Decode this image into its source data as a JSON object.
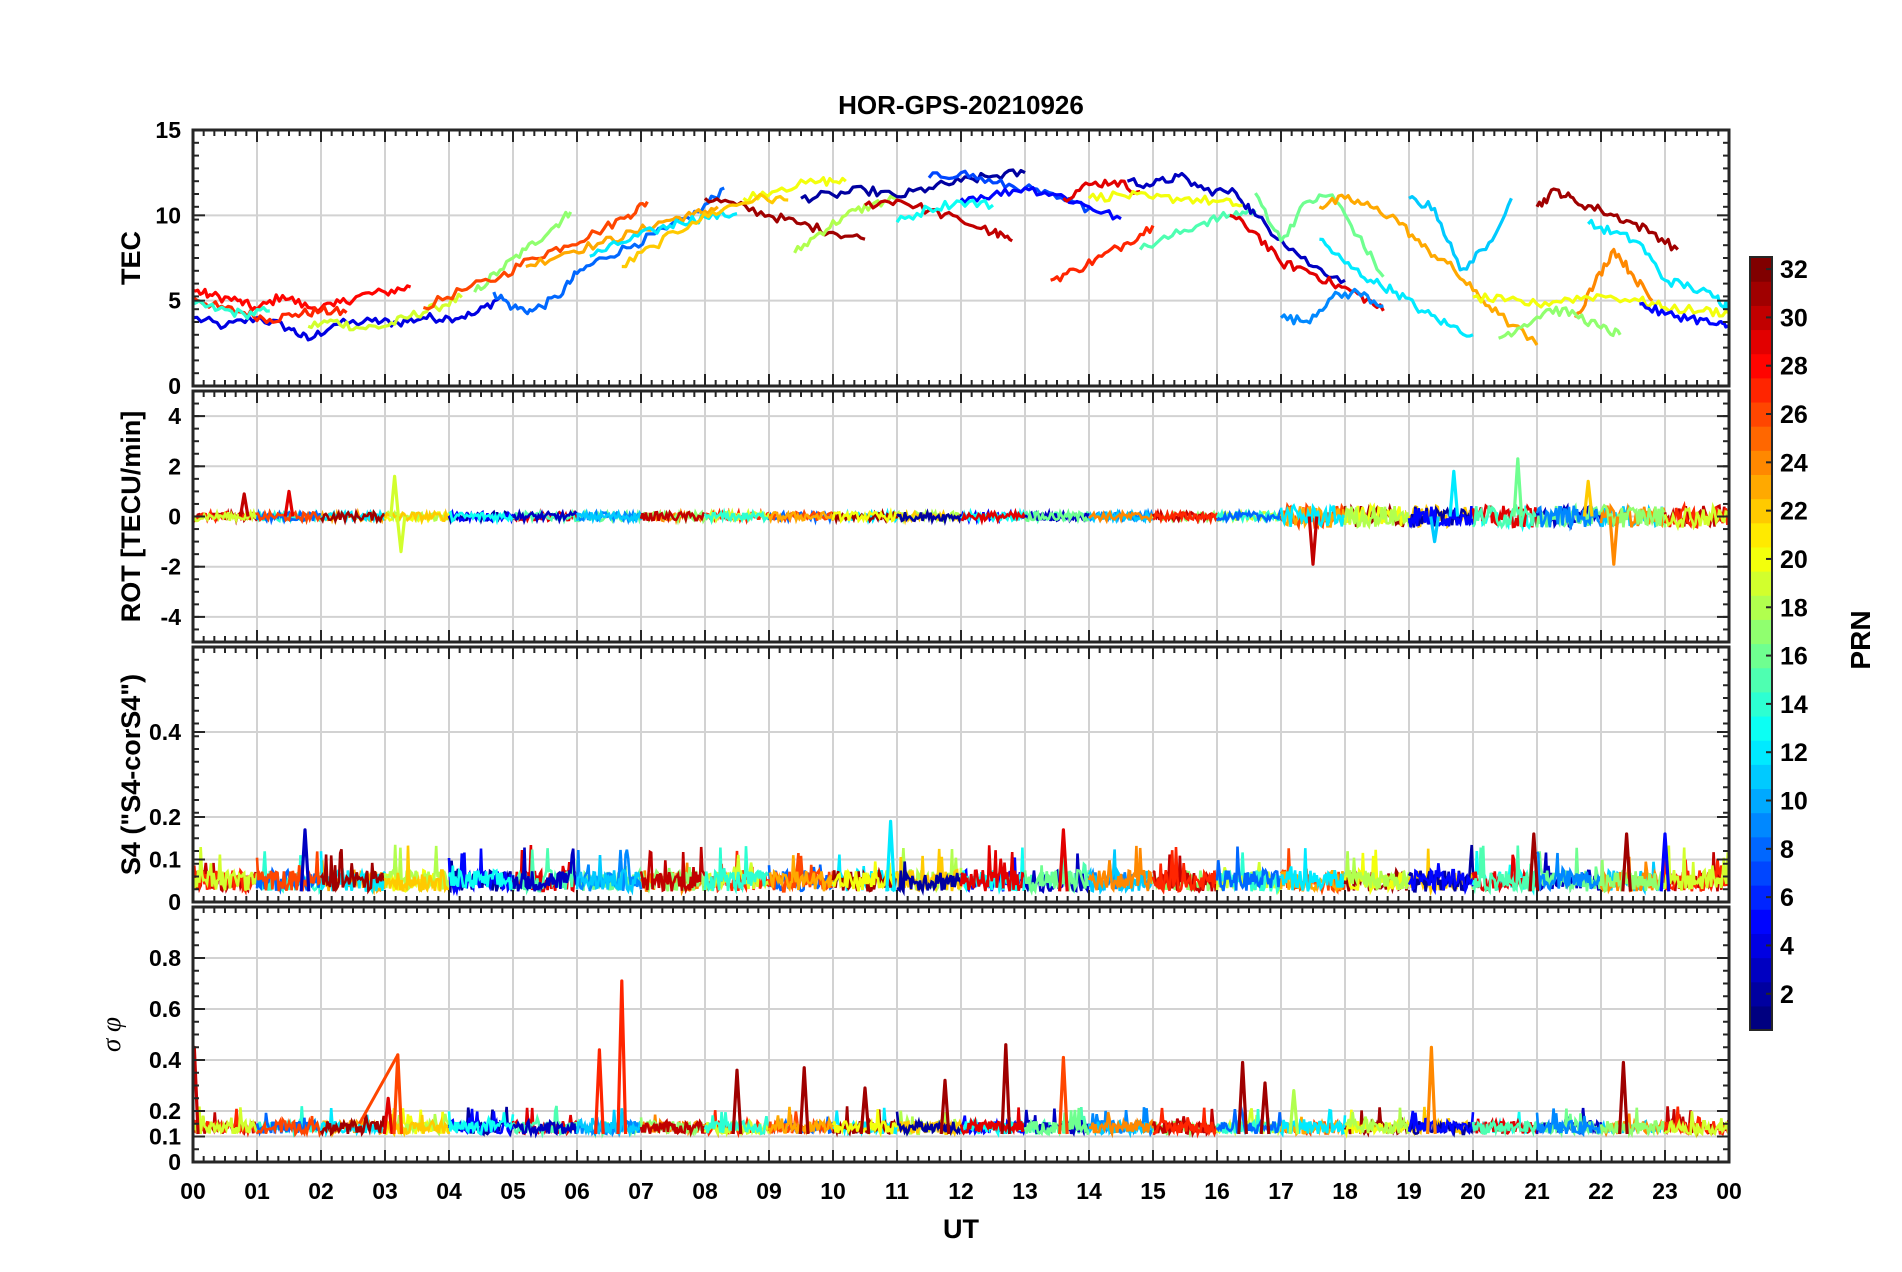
{
  "figure": {
    "title": "HOR-GPS-20210926",
    "xlabel": "UT",
    "x_tick_labels": [
      "00",
      "01",
      "02",
      "03",
      "04",
      "05",
      "06",
      "07",
      "08",
      "09",
      "10",
      "11",
      "12",
      "13",
      "14",
      "15",
      "16",
      "17",
      "18",
      "19",
      "20",
      "21",
      "22",
      "23",
      "00"
    ]
  },
  "colorbar": {
    "label": "PRN",
    "colormap": "jet",
    "range": [
      1,
      32
    ],
    "tick_labels": [
      "2",
      "4",
      "6",
      "8",
      "10",
      "12",
      "14",
      "16",
      "18",
      "20",
      "22",
      "24",
      "26",
      "28",
      "30",
      "32"
    ],
    "tick_values": [
      2,
      4,
      6,
      8,
      10,
      12,
      14,
      16,
      18,
      20,
      22,
      24,
      26,
      28,
      30,
      32
    ]
  },
  "chart_data": [
    {
      "type": "line",
      "panel": "TEC",
      "title": "HOR-GPS-20210926",
      "ylabel": "TEC",
      "xlabel": "",
      "xlim": [
        0,
        24
      ],
      "ylim": [
        0,
        15
      ],
      "yticks": [
        0,
        5,
        10,
        15
      ],
      "ytick_labels": [
        "0",
        "5",
        "10",
        "15"
      ],
      "grid": true,
      "color_by": "PRN",
      "series": [
        {
          "prn": 4,
          "x": [
            0,
            0.5,
            1,
            1.5,
            1.8,
            2.2,
            2.8,
            3.2,
            3.6,
            4,
            4.4,
            4.8
          ],
          "values": [
            4,
            3.5,
            4,
            3.4,
            2.7,
            3.6,
            3.8,
            3.7,
            4,
            4,
            4.2,
            5.2
          ]
        },
        {
          "prn": 28,
          "x": [
            0,
            0.3,
            0.7,
            1,
            1.4,
            1.8,
            2.2,
            2.6,
            3,
            3.4
          ],
          "values": [
            5.6,
            5.3,
            5,
            4.5,
            5.3,
            4.6,
            4.7,
            5.3,
            5.5,
            5.8
          ]
        },
        {
          "prn": 27,
          "x": [
            0,
            0.4,
            0.8,
            1.2,
            1.6,
            2,
            2.4
          ],
          "values": [
            5.2,
            4.6,
            4.3,
            3.9,
            4.2,
            4.4,
            4.3
          ]
        },
        {
          "prn": 19,
          "x": [
            1.8,
            2.2,
            2.6,
            3,
            3.4,
            3.8,
            4.2
          ],
          "values": [
            3.5,
            3.8,
            3.4,
            3.5,
            4.1,
            4.6,
            5.2
          ]
        },
        {
          "prn": 14,
          "x": [
            0,
            0.4,
            0.8,
            1.2
          ],
          "values": [
            4.8,
            4.5,
            4.2,
            4.4
          ]
        },
        {
          "prn": 17,
          "x": [
            4.4,
            4.8,
            5.2,
            5.6,
            5.9
          ],
          "values": [
            5.5,
            6.8,
            8,
            9.2,
            10.2
          ]
        },
        {
          "prn": 8,
          "x": [
            4.7,
            5,
            5.3,
            5.7,
            6,
            6.4,
            6.9,
            7.4,
            7.9,
            8.3
          ],
          "values": [
            5.5,
            4.6,
            4.4,
            5.2,
            6.6,
            7.5,
            8.3,
            9.2,
            10.2,
            11.6
          ]
        },
        {
          "prn": 26,
          "x": [
            3.6,
            4.2,
            4.8,
            5.3,
            5.8,
            6.3,
            6.8,
            7.1
          ],
          "values": [
            4.6,
            5.6,
            6.4,
            7.5,
            8.2,
            9,
            10,
            10.8
          ]
        },
        {
          "prn": 23,
          "x": [
            5.2,
            5.8,
            6.4,
            6.9,
            7.4,
            7.8,
            8.2
          ],
          "values": [
            7,
            7.8,
            8.4,
            9,
            9.7,
            10,
            10.5
          ]
        },
        {
          "prn": 12,
          "x": [
            6.2,
            6.7,
            7.2,
            7.6,
            8,
            8.5
          ],
          "values": [
            7.6,
            8.4,
            9.1,
            9.6,
            9.9,
            10.1
          ]
        },
        {
          "prn": 31,
          "x": [
            8,
            8.5,
            9,
            9.5,
            10,
            10.5
          ],
          "values": [
            11,
            10.6,
            10,
            9.5,
            9,
            8.6
          ]
        },
        {
          "prn": 20,
          "x": [
            8.6,
            9.2,
            9.8,
            10.2
          ],
          "values": [
            11,
            11.6,
            12,
            12
          ]
        },
        {
          "prn": 18,
          "x": [
            9.4,
            9.8,
            10.2,
            10.6,
            11
          ],
          "values": [
            7.8,
            9,
            10,
            10.6,
            11
          ]
        },
        {
          "prn": 22,
          "x": [
            6.7,
            7.2,
            7.8,
            8.3,
            8.8,
            9.3
          ],
          "values": [
            7,
            8.2,
            9.6,
            10.4,
            11,
            10.9
          ]
        },
        {
          "prn": 2,
          "x": [
            9.5,
            10,
            10.5,
            11,
            11.5,
            12,
            12.5,
            13
          ],
          "values": [
            11,
            11.2,
            11.5,
            11.1,
            11.6,
            12,
            12.3,
            12.5
          ]
        },
        {
          "prn": 30,
          "x": [
            10.5,
            11,
            11.5,
            12,
            12.5,
            12.8
          ],
          "values": [
            10.6,
            10.9,
            10.3,
            9.7,
            9,
            8.5
          ]
        },
        {
          "prn": 7,
          "x": [
            11.5,
            12,
            12.5,
            13,
            13.5,
            14
          ],
          "values": [
            12.2,
            12.5,
            11.9,
            11.6,
            11,
            10.4
          ]
        },
        {
          "prn": 5,
          "x": [
            12,
            12.5,
            13,
            13.5,
            14,
            14.5
          ],
          "values": [
            11,
            11.2,
            11.6,
            11.2,
            10.5,
            9.8
          ]
        },
        {
          "prn": 13,
          "x": [
            11,
            11.5,
            12,
            12.5
          ],
          "values": [
            9.6,
            10.4,
            10.8,
            10.6
          ]
        },
        {
          "prn": 27,
          "x": [
            13.4,
            13.8,
            14.2,
            14.6,
            15
          ],
          "values": [
            6.2,
            6.8,
            7.6,
            8.4,
            9.4
          ]
        },
        {
          "prn": 29,
          "x": [
            13.6,
            14,
            14.4,
            14.8
          ],
          "values": [
            11,
            11.8,
            12,
            11.4
          ]
        },
        {
          "prn": 15,
          "x": [
            14.8,
            15.3,
            15.8,
            16.2,
            16.6
          ],
          "values": [
            8,
            8.8,
            9.6,
            10,
            10.3
          ]
        },
        {
          "prn": 3,
          "x": [
            14.6,
            15,
            15.4,
            15.8,
            16.3,
            16.6,
            17,
            17.5,
            18
          ],
          "values": [
            12,
            11.8,
            12.3,
            11.5,
            11.3,
            10,
            8.6,
            7,
            6.2
          ]
        },
        {
          "prn": 20,
          "x": [
            14,
            14.5,
            15,
            15.5,
            16,
            16.4
          ],
          "values": [
            11,
            11.2,
            11,
            11,
            10.8,
            10.6
          ]
        },
        {
          "prn": 29,
          "x": [
            16.2,
            16.6,
            17,
            17.4,
            17.8,
            18.2,
            18.6
          ],
          "values": [
            10,
            9,
            7.2,
            6.8,
            6,
            5.4,
            4.4
          ]
        },
        {
          "prn": 16,
          "x": [
            16.6,
            17,
            17.4,
            17.8,
            18.2,
            18.6
          ],
          "values": [
            11.3,
            8.5,
            10.8,
            11.2,
            8.8,
            6.4
          ]
        },
        {
          "prn": 12,
          "x": [
            17.6,
            18,
            18.4,
            18.8,
            19.2,
            19.6,
            20
          ],
          "values": [
            8.6,
            7.2,
            6.2,
            5.5,
            4.4,
            3.6,
            3
          ]
        },
        {
          "prn": 9,
          "x": [
            17,
            17.4,
            17.8,
            18.2,
            18.6
          ],
          "values": [
            4,
            3.8,
            5.2,
            5.5,
            4.7
          ]
        },
        {
          "prn": 23,
          "x": [
            17.6,
            18,
            18.4,
            18.8,
            19.2,
            19.6,
            20,
            20.4,
            21
          ],
          "values": [
            10.5,
            11,
            10.5,
            9.8,
            8.2,
            7.2,
            5.6,
            4.2,
            2.4
          ]
        },
        {
          "prn": 11,
          "x": [
            19,
            19.4,
            19.8,
            20.2,
            20.6
          ],
          "values": [
            11,
            10.4,
            6.8,
            8,
            11
          ]
        },
        {
          "prn": 31,
          "x": [
            21,
            21.3,
            21.6,
            22,
            22.4,
            22.8,
            23.2
          ],
          "values": [
            10.5,
            11.5,
            10.8,
            10.3,
            9.7,
            9,
            8
          ]
        },
        {
          "prn": 12,
          "x": [
            21.8,
            22.2,
            22.6,
            23,
            23.4,
            23.8,
            24
          ],
          "values": [
            9.5,
            9,
            8.4,
            6.2,
            5.8,
            5.2,
            4.6
          ]
        },
        {
          "prn": 24,
          "x": [
            21.6,
            21.9,
            22.2,
            22.5,
            22.8
          ],
          "values": [
            4,
            6,
            8,
            6.5,
            5
          ]
        },
        {
          "prn": 17,
          "x": [
            20.4,
            20.8,
            21.2,
            21.6,
            22,
            22.3
          ],
          "values": [
            2.8,
            3.6,
            4.5,
            4.2,
            3.4,
            3
          ]
        },
        {
          "prn": 20,
          "x": [
            20,
            20.5,
            21,
            21.5,
            22,
            22.6,
            23,
            23.6,
            24
          ],
          "values": [
            5.2,
            5,
            4.8,
            5.1,
            5.3,
            5,
            4.6,
            4.4,
            4.3
          ]
        },
        {
          "prn": 5,
          "x": [
            22.6,
            23,
            23.4,
            23.8,
            24
          ],
          "values": [
            4.8,
            4.2,
            4,
            3.6,
            3.5
          ]
        }
      ]
    },
    {
      "type": "line",
      "panel": "ROT",
      "ylabel": "ROT [TECU/min]",
      "xlim": [
        0,
        24
      ],
      "ylim": [
        -5,
        5
      ],
      "yticks": [
        -4,
        -2,
        0,
        2,
        4
      ],
      "ytick_labels": [
        "-4",
        "-2",
        "0",
        "2",
        "4"
      ],
      "grid": true,
      "spikes": [
        {
          "prn": 30,
          "x": 0.8,
          "value": 0.9
        },
        {
          "prn": 29,
          "x": 1.5,
          "value": 1
        },
        {
          "prn": 19,
          "x": 3.15,
          "value": 1.6
        },
        {
          "prn": 19,
          "x": 3.25,
          "value": -1.4
        },
        {
          "prn": 30,
          "x": 17.5,
          "value": -1.9
        },
        {
          "prn": 12,
          "x": 19.7,
          "value": 1.8
        },
        {
          "prn": 16,
          "x": 20.7,
          "value": 2.3
        },
        {
          "prn": 24,
          "x": 22.2,
          "value": -1.9
        },
        {
          "prn": 22,
          "x": 21.8,
          "value": 1.4
        },
        {
          "prn": 11,
          "x": 19.4,
          "value": -1
        }
      ]
    },
    {
      "type": "line",
      "panel": "S4",
      "ylabel": "S4 (\"S4-corS4\")",
      "xlim": [
        0,
        24
      ],
      "ylim": [
        0,
        0.6
      ],
      "yticks": [
        0,
        0.1,
        0.2,
        0.4
      ],
      "ytick_labels": [
        "0",
        "0.1",
        "0.2",
        "0.4"
      ],
      "grid": true,
      "spikes": [
        {
          "prn": 3,
          "x": 1.75,
          "value": 0.17
        },
        {
          "prn": 12,
          "x": 10.9,
          "value": 0.19
        },
        {
          "prn": 29,
          "x": 13.6,
          "value": 0.17
        },
        {
          "prn": 31,
          "x": 20.95,
          "value": 0.16
        },
        {
          "prn": 31,
          "x": 22.4,
          "value": 0.16
        },
        {
          "prn": 5,
          "x": 23,
          "value": 0.16
        }
      ]
    },
    {
      "type": "line",
      "panel": "sigma_phi",
      "ylabel": "σ φ",
      "xlim": [
        0,
        24
      ],
      "ylim": [
        0,
        1
      ],
      "yticks": [
        0,
        0.1,
        0.2,
        0.4,
        0.6,
        0.8
      ],
      "ytick_labels": [
        "0",
        "0.1",
        "0.2",
        "0.4",
        "0.6",
        "0.8"
      ],
      "grid": true,
      "spikes": [
        {
          "prn": 30,
          "x": 0.02,
          "value": 0.45
        },
        {
          "prn": 29,
          "x": 3.05,
          "value": 0.25
        },
        {
          "prn": 26,
          "x": 3.2,
          "value": 0.42
        },
        {
          "prn": 27,
          "x": 6.35,
          "value": 0.44
        },
        {
          "prn": 27,
          "x": 6.7,
          "value": 0.71
        },
        {
          "prn": 31,
          "x": 8.5,
          "value": 0.36
        },
        {
          "prn": 31,
          "x": 9.55,
          "value": 0.37
        },
        {
          "prn": 31,
          "x": 10.5,
          "value": 0.29
        },
        {
          "prn": 31,
          "x": 11.75,
          "value": 0.32
        },
        {
          "prn": 31,
          "x": 12.7,
          "value": 0.46
        },
        {
          "prn": 26,
          "x": 13.6,
          "value": 0.41
        },
        {
          "prn": 31,
          "x": 16.4,
          "value": 0.39
        },
        {
          "prn": 31,
          "x": 16.75,
          "value": 0.31
        },
        {
          "prn": 24,
          "x": 19.35,
          "value": 0.45
        },
        {
          "prn": 31,
          "x": 22.35,
          "value": 0.39
        },
        {
          "prn": 18,
          "x": 17.2,
          "value": 0.28
        }
      ],
      "ramps": [
        {
          "prn": 26,
          "x": [
            2.6,
            3.2
          ],
          "values": [
            0.15,
            0.42
          ]
        }
      ]
    }
  ]
}
